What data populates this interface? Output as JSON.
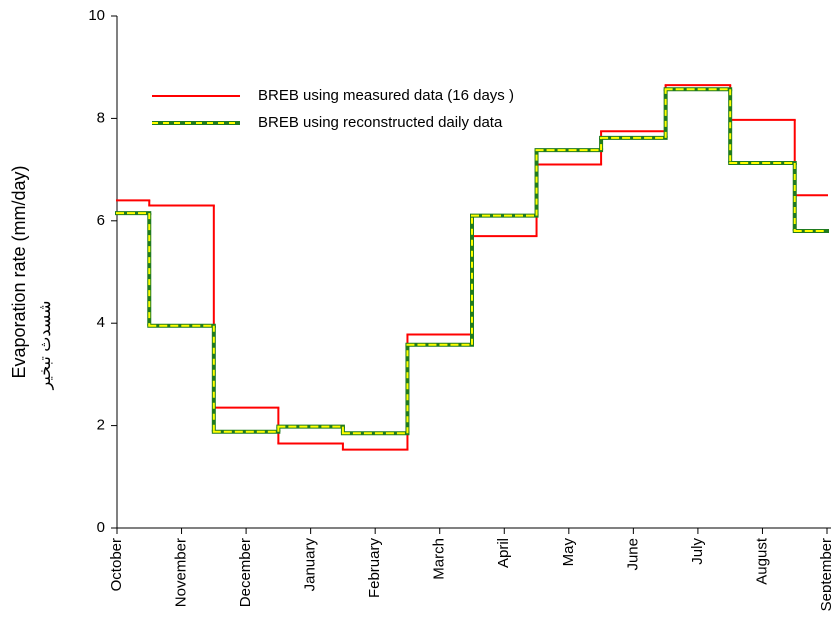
{
  "chart_data": {
    "type": "line",
    "step": "mid",
    "y_label": "Evaporation rate (mm/day)",
    "y_label_note": "شسدث تبخير",
    "categories": [
      "October",
      "November",
      "December",
      "January",
      "February",
      "March",
      "April",
      "May",
      "June",
      "July",
      "August",
      "September"
    ],
    "series": [
      {
        "name": "BREB using measured data (16 days )",
        "color": "#ff0000",
        "values": [
          6.4,
          6.3,
          2.35,
          1.65,
          1.53,
          3.78,
          5.7,
          7.1,
          7.75,
          8.65,
          7.97,
          6.5
        ]
      },
      {
        "name": "BREB using reconstructed daily data",
        "color": "#1f7a1f",
        "dash_color": "#ffff00",
        "values": [
          6.15,
          3.95,
          1.88,
          1.98,
          1.85,
          3.58,
          6.1,
          7.38,
          7.62,
          8.57,
          7.13,
          5.8
        ]
      }
    ],
    "ylim": [
      0,
      10
    ],
    "yticks": [
      0,
      2,
      4,
      6,
      8,
      10
    ]
  }
}
